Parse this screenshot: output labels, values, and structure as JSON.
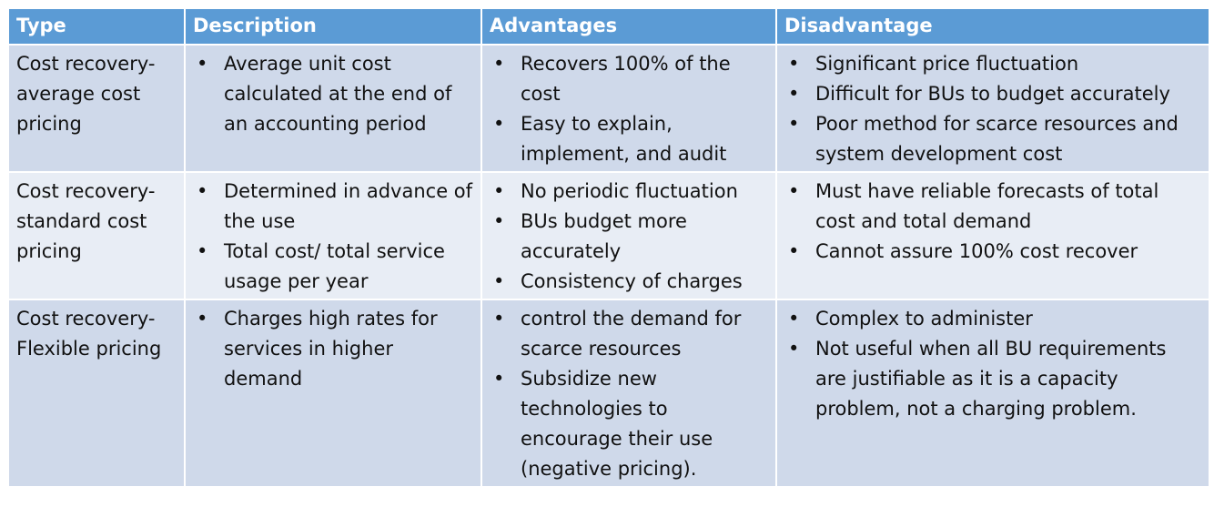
{
  "table": {
    "header": [
      "Type",
      "Description",
      "Advantages",
      "Disadvantage"
    ],
    "rows": [
      [
        "Cost recovery-average cost pricing",
        [
          "Average unit cost calculated at the end of an accounting period"
        ],
        [
          "Recovers 100% of the cost",
          "Easy to explain, implement, and audit"
        ],
        [
          "Significant price fluctuation",
          "Difficult for BUs to budget accurately",
          "Poor method for scarce resources and system development cost"
        ]
      ],
      [
        "Cost recovery-standard cost pricing",
        [
          "Determined in advance of the use",
          "Total cost/ total service usage per year"
        ],
        [
          "No periodic fluctuation",
          "BUs budget more accurately",
          "Consistency of charges"
        ],
        [
          "Must have reliable forecasts of total cost and total demand",
          "Cannot assure 100% cost recover"
        ]
      ],
      [
        "Cost recovery-Flexible pricing",
        [
          "Charges high rates for services in higher demand"
        ],
        [
          "control the demand for scarce resources",
          "Subsidize new technologies to encourage their use (negative pricing)."
        ],
        [
          "Complex to administer",
          "Not useful when all BU requirements are justifiable as it is a capacity problem, not a charging problem."
        ]
      ]
    ]
  }
}
